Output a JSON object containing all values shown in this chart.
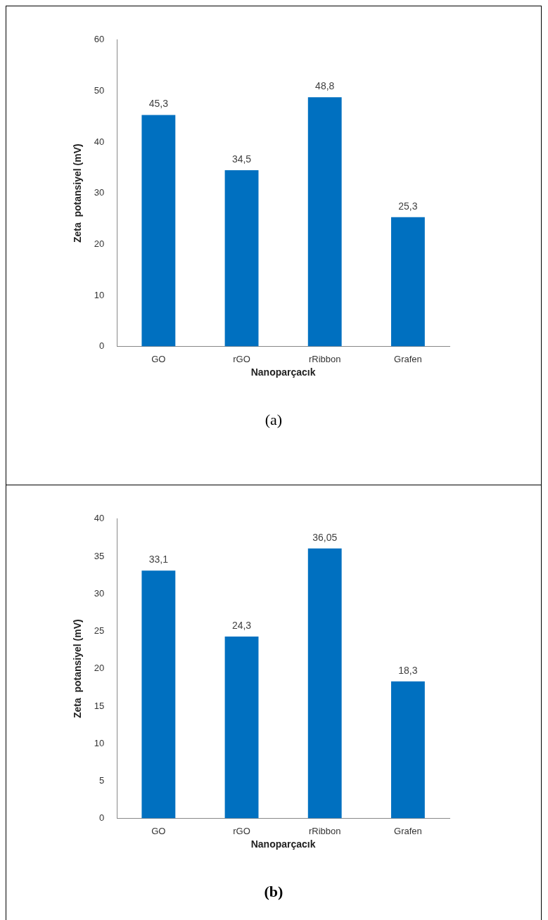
{
  "chart_data": [
    {
      "type": "bar",
      "categories": [
        "GO",
        "rGO",
        "rRibbon",
        "Grafen"
      ],
      "values": [
        45.3,
        34.5,
        48.8,
        25.3
      ],
      "value_labels": [
        "45,3",
        "34,5",
        "48,8",
        "25,3"
      ],
      "color": "#0070c0",
      "xlabel": "Nanoparçacık",
      "ylabel": "Zeta  potansiyel (mV)",
      "ylim": [
        0,
        60
      ],
      "yticks": [
        0,
        10,
        20,
        30,
        40,
        50,
        60
      ],
      "grid": false,
      "legend": false,
      "annotations": [
        "(a)"
      ]
    },
    {
      "type": "bar",
      "categories": [
        "GO",
        "rGO",
        "rRibbon",
        "Grafen"
      ],
      "values": [
        33.1,
        24.3,
        36.05,
        18.3
      ],
      "value_labels": [
        "33,1",
        "24,3",
        "36,05",
        "18,3"
      ],
      "color": "#0070c0",
      "xlabel": "Nanoparçacık",
      "ylabel": "Zeta  potansiyel (mV)",
      "ylim": [
        0,
        40
      ],
      "yticks": [
        0,
        5,
        10,
        15,
        20,
        25,
        30,
        35,
        40
      ],
      "grid": false,
      "legend": false,
      "annotations": [
        "(b)"
      ]
    }
  ]
}
